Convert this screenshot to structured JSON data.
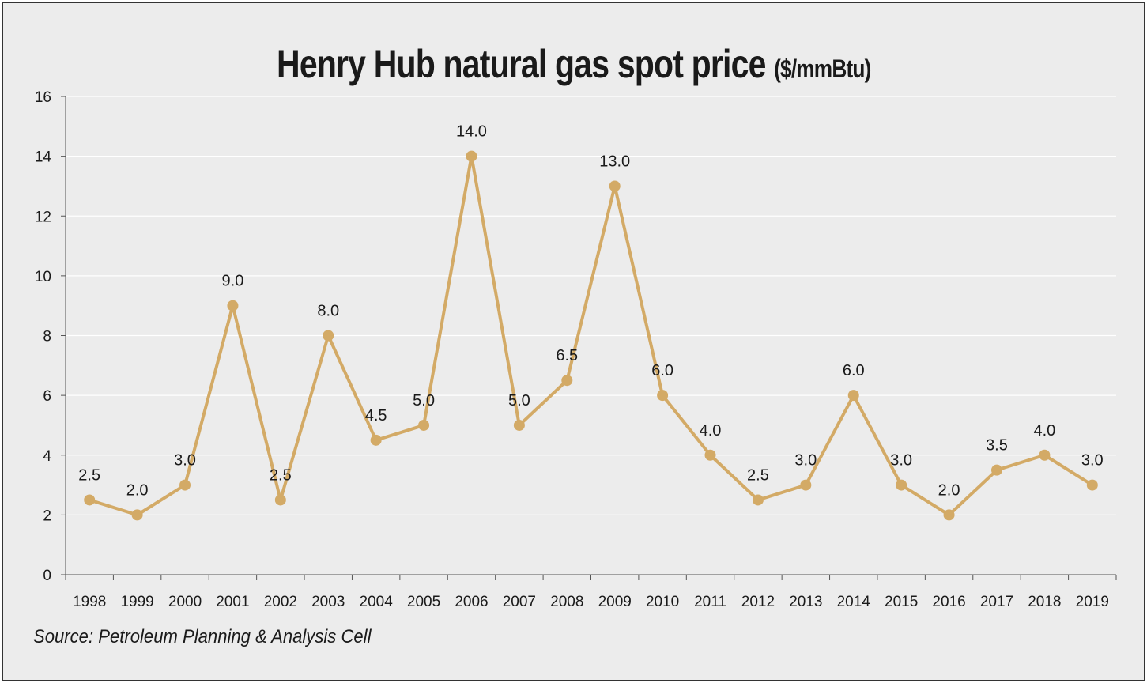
{
  "title": {
    "main": "Henry Hub natural gas spot price",
    "unit": "($/mmBtu)"
  },
  "source": "Source: Petroleum Planning & Analysis Cell",
  "colors": {
    "line": "#d3aa66",
    "marker": "#d3aa66",
    "grid": "#ffffff",
    "axis": "#555555",
    "background": "#ececec"
  },
  "chart_data": {
    "type": "line",
    "title": "Henry Hub natural gas spot price ($/mmBtu)",
    "xlabel": "",
    "ylabel": "",
    "categories": [
      "1998",
      "1999",
      "2000",
      "2001",
      "2002",
      "2003",
      "2004",
      "2005",
      "2006",
      "2007",
      "2008",
      "2009",
      "2010",
      "2011",
      "2012",
      "2013",
      "2014",
      "2015",
      "2016",
      "2017",
      "2018",
      "2019"
    ],
    "values": [
      2.5,
      2.0,
      3.0,
      9.0,
      2.5,
      8.0,
      4.5,
      5.0,
      14.0,
      5.0,
      6.5,
      13.0,
      6.0,
      4.0,
      2.5,
      3.0,
      6.0,
      3.0,
      2.0,
      3.5,
      4.0,
      3.0
    ],
    "data_labels": [
      "2.5",
      "2.0",
      "3.0",
      "9.0",
      "2.5",
      "8.0",
      "4.5",
      "5.0",
      "14.0",
      "5.0",
      "6.5",
      "13.0",
      "6.0",
      "4.0",
      "2.5",
      "3.0",
      "6.0",
      "3.0",
      "2.0",
      "3.5",
      "4.0",
      "3.0"
    ],
    "ylim": [
      0,
      16
    ],
    "yticks": [
      0,
      2,
      4,
      6,
      8,
      10,
      12,
      14,
      16
    ],
    "ytick_labels": [
      "0",
      "2",
      "4",
      "6",
      "8",
      "10",
      "12",
      "14",
      "16"
    ],
    "grid": true,
    "legend": "none"
  }
}
